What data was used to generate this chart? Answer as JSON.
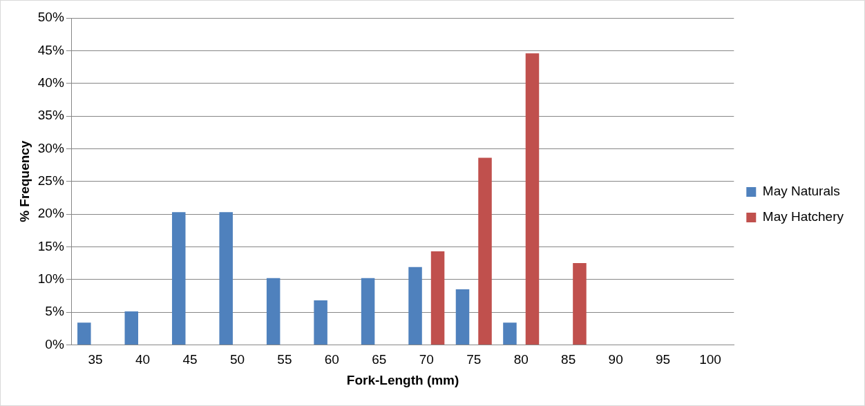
{
  "chart_data": {
    "type": "bar",
    "xlabel": "Fork-Length (mm)",
    "ylabel": "% Frequency",
    "categories": [
      "35",
      "40",
      "45",
      "50",
      "55",
      "60",
      "65",
      "70",
      "75",
      "80",
      "85",
      "90",
      "95",
      "100"
    ],
    "series": [
      {
        "name": "May Naturals",
        "color": "#4f81bd",
        "values": [
          3.4,
          5.1,
          20.3,
          20.3,
          10.2,
          6.8,
          10.2,
          11.9,
          8.5,
          3.4,
          0,
          0,
          0,
          0
        ]
      },
      {
        "name": "May Hatchery",
        "color": "#c0504d",
        "values": [
          0,
          0,
          0,
          0,
          0,
          0,
          0,
          14.3,
          28.6,
          44.6,
          12.5,
          0,
          0,
          0
        ]
      }
    ],
    "ylim": [
      0,
      50
    ],
    "yticks": [
      {
        "value": 0,
        "label": "0%"
      },
      {
        "value": 5,
        "label": "5%"
      },
      {
        "value": 10,
        "label": "10%"
      },
      {
        "value": 15,
        "label": "15%"
      },
      {
        "value": 20,
        "label": "20%"
      },
      {
        "value": 25,
        "label": "25%"
      },
      {
        "value": 30,
        "label": "30%"
      },
      {
        "value": 35,
        "label": "35%"
      },
      {
        "value": 40,
        "label": "40%"
      },
      {
        "value": 45,
        "label": "45%"
      },
      {
        "value": 50,
        "label": "50%"
      }
    ],
    "grid": "y",
    "legend": "right"
  }
}
